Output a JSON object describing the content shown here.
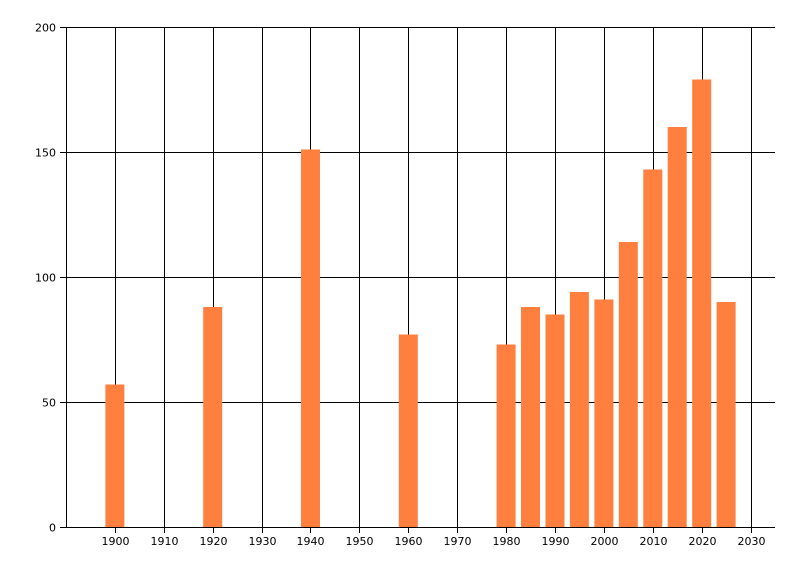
{
  "chart_data": {
    "type": "bar",
    "x": [
      1900,
      1920,
      1940,
      1960,
      1980,
      1985,
      1990,
      1995,
      2000,
      2005,
      2010,
      2015,
      2020,
      2025
    ],
    "values": [
      57,
      88,
      151,
      77,
      73,
      88,
      85,
      94,
      91,
      114,
      143,
      160,
      179,
      90
    ],
    "xlim": [
      1890,
      2035
    ],
    "ylim": [
      0,
      200
    ],
    "x_ticks": [
      1900,
      1910,
      1920,
      1930,
      1940,
      1950,
      1960,
      1970,
      1980,
      1990,
      2000,
      2010,
      2020,
      2030
    ],
    "y_ticks": [
      0,
      50,
      100,
      150,
      200
    ],
    "grid": true,
    "bar_color": "#FF7F3F",
    "grid_color": "#000000",
    "title": "",
    "xlabel": "",
    "ylabel": ""
  }
}
